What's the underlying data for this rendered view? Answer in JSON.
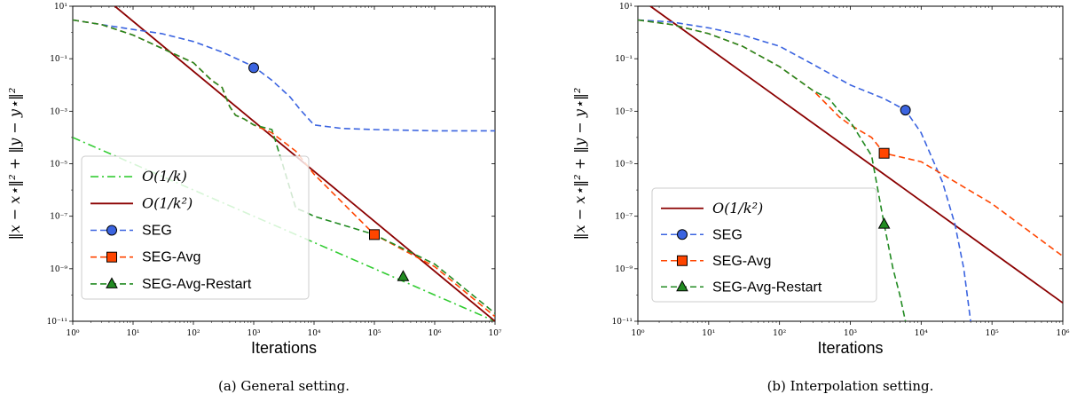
{
  "chart_data": [
    {
      "type": "line",
      "caption": "(a) General setting.",
      "xlabel": "Iterations",
      "ylabel": "‖x − x⋆‖² + ‖y − y⋆‖²",
      "xscale": "log",
      "yscale": "log",
      "xlim": [
        1,
        10000000
      ],
      "ylim": [
        1e-11,
        10
      ],
      "xticks": [
        "10⁰",
        "10¹",
        "10²",
        "10³",
        "10⁴",
        "10⁵",
        "10⁶",
        "10⁷"
      ],
      "yticks": [
        "10⁻¹¹",
        "10⁻⁹",
        "10⁻⁷",
        "10⁻⁵",
        "10⁻³",
        "10⁻¹",
        "10¹"
      ],
      "legend_position": "lower-left",
      "series": [
        {
          "name": "O(1/k)",
          "color": "#33cc33",
          "style": "dashdot",
          "marker": "none",
          "x": [
            1,
            10000000
          ],
          "y": [
            0.0001,
            1e-11
          ]
        },
        {
          "name": "O(1/k²)",
          "color": "#8b0000",
          "style": "solid",
          "marker": "none",
          "x": [
            5,
            10000000
          ],
          "y": [
            10,
            1e-11
          ]
        },
        {
          "name": "SEG",
          "color": "#3b64e0",
          "style": "dashed",
          "marker": "circle",
          "x": [
            1,
            3,
            10,
            30,
            100,
            300,
            1000,
            2000,
            4000,
            6000,
            10000,
            30000,
            100000,
            1000000,
            10000000
          ],
          "y": [
            3,
            2,
            1.3,
            0.9,
            0.45,
            0.18,
            0.05,
            0.015,
            0.0035,
            0.0011,
            0.0003,
            0.00022,
            0.0002,
            0.00018,
            0.00018
          ],
          "marker_points": [
            [
              1000,
              0.045
            ]
          ]
        },
        {
          "name": "SEG-Avg",
          "color": "#ff4500",
          "style": "dashed",
          "marker": "square",
          "x": [
            1,
            3,
            10,
            30,
            100,
            200,
            300,
            400,
            500,
            700,
            1000,
            2000,
            5000,
            10000,
            100000,
            1000000,
            10000000
          ],
          "y": [
            3,
            2,
            0.8,
            0.25,
            0.07,
            0.015,
            0.008,
            0.0015,
            0.0007,
            0.0005,
            0.0003,
            0.00015,
            3e-05,
            4e-06,
            2e-08,
            1.2e-09,
            1.5e-11
          ],
          "marker_points": [
            [
              100000,
              2e-08
            ]
          ]
        },
        {
          "name": "SEG-Avg-Restart",
          "color": "#228b22",
          "style": "dashed",
          "marker": "triangle",
          "x": [
            1,
            3,
            10,
            30,
            100,
            200,
            300,
            400,
            500,
            700,
            1000,
            2000,
            3000,
            5000,
            7000,
            10000,
            100000,
            1000000,
            10000000
          ],
          "y": [
            3,
            2,
            0.8,
            0.25,
            0.07,
            0.015,
            0.008,
            0.0015,
            0.0007,
            0.0005,
            0.0003,
            0.0002,
            1e-05,
            2e-07,
            1.5e-07,
            1e-07,
            2e-08,
            1.5e-09,
            2e-11
          ],
          "marker_points": [
            [
              300000,
              5e-10
            ]
          ]
        }
      ]
    },
    {
      "type": "line",
      "caption": "(b) Interpolation setting.",
      "xlabel": "Iterations",
      "ylabel": "‖x − x⋆‖² + ‖y − y⋆‖²",
      "xscale": "log",
      "yscale": "log",
      "xlim": [
        1,
        1000000
      ],
      "ylim": [
        1e-11,
        10
      ],
      "xticks": [
        "10⁰",
        "10¹",
        "10²",
        "10³",
        "10⁴",
        "10⁵",
        "10⁶"
      ],
      "yticks": [
        "10⁻¹¹",
        "10⁻⁹",
        "10⁻⁷",
        "10⁻⁵",
        "10⁻³",
        "10⁻¹",
        "10¹"
      ],
      "legend_position": "lower-left",
      "series": [
        {
          "name": "O(1/k²)",
          "color": "#8b0000",
          "style": "solid",
          "marker": "none",
          "x": [
            1.5,
            1000000
          ],
          "y": [
            10,
            5e-11
          ]
        },
        {
          "name": "SEG",
          "color": "#3b64e0",
          "style": "dashed",
          "marker": "circle",
          "x": [
            1,
            3,
            10,
            30,
            100,
            300,
            1000,
            3000,
            6000,
            10000,
            20000,
            30000,
            40000,
            50000
          ],
          "y": [
            3,
            2.5,
            1.5,
            0.8,
            0.3,
            0.06,
            0.01,
            0.003,
            0.0011,
            0.00015,
            2e-06,
            5e-08,
            1e-09,
            1e-11
          ],
          "marker_points": [
            [
              6000,
              0.0011
            ]
          ]
        },
        {
          "name": "SEG-Avg",
          "color": "#ff4500",
          "style": "dashed",
          "marker": "square",
          "x": [
            1,
            3,
            10,
            30,
            100,
            300,
            500,
            700,
            1000,
            2000,
            3000,
            10000,
            100000,
            1000000
          ],
          "y": [
            3,
            2,
            0.9,
            0.3,
            0.05,
            0.006,
            0.0015,
            0.0006,
            0.0003,
            0.0001,
            2.5e-05,
            1.2e-05,
            3e-07,
            3e-09
          ],
          "marker_points": [
            [
              3000,
              2.5e-05
            ]
          ]
        },
        {
          "name": "SEG-Avg-Restart",
          "color": "#228b22",
          "style": "dashed",
          "marker": "triangle",
          "x": [
            1,
            3,
            10,
            30,
            100,
            300,
            500,
            700,
            1000,
            2000,
            3000,
            4000,
            5000,
            6000
          ],
          "y": [
            3,
            2,
            0.9,
            0.3,
            0.05,
            0.006,
            0.003,
            0.001,
            0.0004,
            2e-05,
            5e-08,
            1e-09,
            1e-10,
            1e-11
          ],
          "marker_points": [
            [
              3000,
              5e-08
            ]
          ]
        }
      ]
    }
  ]
}
